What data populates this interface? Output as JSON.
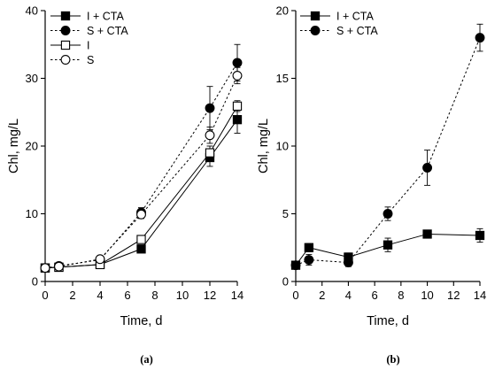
{
  "chart_data": [
    {
      "type": "line",
      "panel_label": "(a)",
      "xlabel": "Time, d",
      "ylabel": "Chl, mg/L",
      "xlim": [
        0,
        14
      ],
      "ylim": [
        0,
        40
      ],
      "x_ticks": [
        0,
        2,
        4,
        6,
        8,
        10,
        12,
        14
      ],
      "y_ticks": [
        0,
        10,
        20,
        30,
        40
      ],
      "legend_position": "top-left",
      "series": [
        {
          "name": "I + CTA",
          "marker": "square-filled",
          "line": "solid",
          "x": [
            0,
            1,
            4,
            7,
            12,
            14
          ],
          "y": [
            2.0,
            2.1,
            2.5,
            4.8,
            18.3,
            23.9
          ],
          "err": [
            0.2,
            0.3,
            0.3,
            0.5,
            1.3,
            2.0
          ]
        },
        {
          "name": "S + CTA",
          "marker": "circle-filled",
          "line": "dotted",
          "x": [
            0,
            1,
            4,
            7,
            12,
            14
          ],
          "y": [
            2.0,
            2.3,
            3.2,
            10.2,
            25.6,
            32.3
          ],
          "err": [
            0.2,
            0.3,
            0.3,
            0.7,
            3.2,
            2.7
          ]
        },
        {
          "name": "I",
          "marker": "square-open",
          "line": "solid",
          "x": [
            0,
            1,
            4,
            7,
            12,
            14
          ],
          "y": [
            2.0,
            2.1,
            2.5,
            6.2,
            19.0,
            25.9
          ],
          "err": [
            0.2,
            0.2,
            0.3,
            0.4,
            1.0,
            0.8
          ]
        },
        {
          "name": "S",
          "marker": "circle-open",
          "line": "dotted",
          "x": [
            0,
            1,
            4,
            7,
            12,
            14
          ],
          "y": [
            2.0,
            2.2,
            3.3,
            9.9,
            21.6,
            30.4
          ],
          "err": [
            0.2,
            0.3,
            0.3,
            0.6,
            1.2,
            1.2
          ]
        }
      ]
    },
    {
      "type": "line",
      "panel_label": "(b)",
      "xlabel": "Time, d",
      "ylabel": "Chl, mg/L",
      "xlim": [
        0,
        14
      ],
      "ylim": [
        0,
        20
      ],
      "x_ticks": [
        0,
        2,
        4,
        6,
        8,
        10,
        12,
        14
      ],
      "y_ticks": [
        0,
        5,
        10,
        15,
        20
      ],
      "legend_position": "top-left",
      "series": [
        {
          "name": "I + CTA",
          "marker": "square-filled",
          "line": "solid",
          "x": [
            0,
            1,
            4,
            7,
            10,
            14
          ],
          "y": [
            1.2,
            2.5,
            1.8,
            2.7,
            3.5,
            3.4
          ],
          "err": [
            0.2,
            0.3,
            0.3,
            0.5,
            0.2,
            0.5
          ]
        },
        {
          "name": "S + CTA",
          "marker": "circle-filled",
          "line": "dotted",
          "x": [
            0,
            1,
            4,
            7,
            10,
            14
          ],
          "y": [
            1.2,
            1.6,
            1.4,
            5.0,
            8.4,
            18.0
          ],
          "err": [
            0.2,
            0.4,
            0.3,
            0.5,
            1.3,
            1.0
          ]
        }
      ]
    }
  ]
}
